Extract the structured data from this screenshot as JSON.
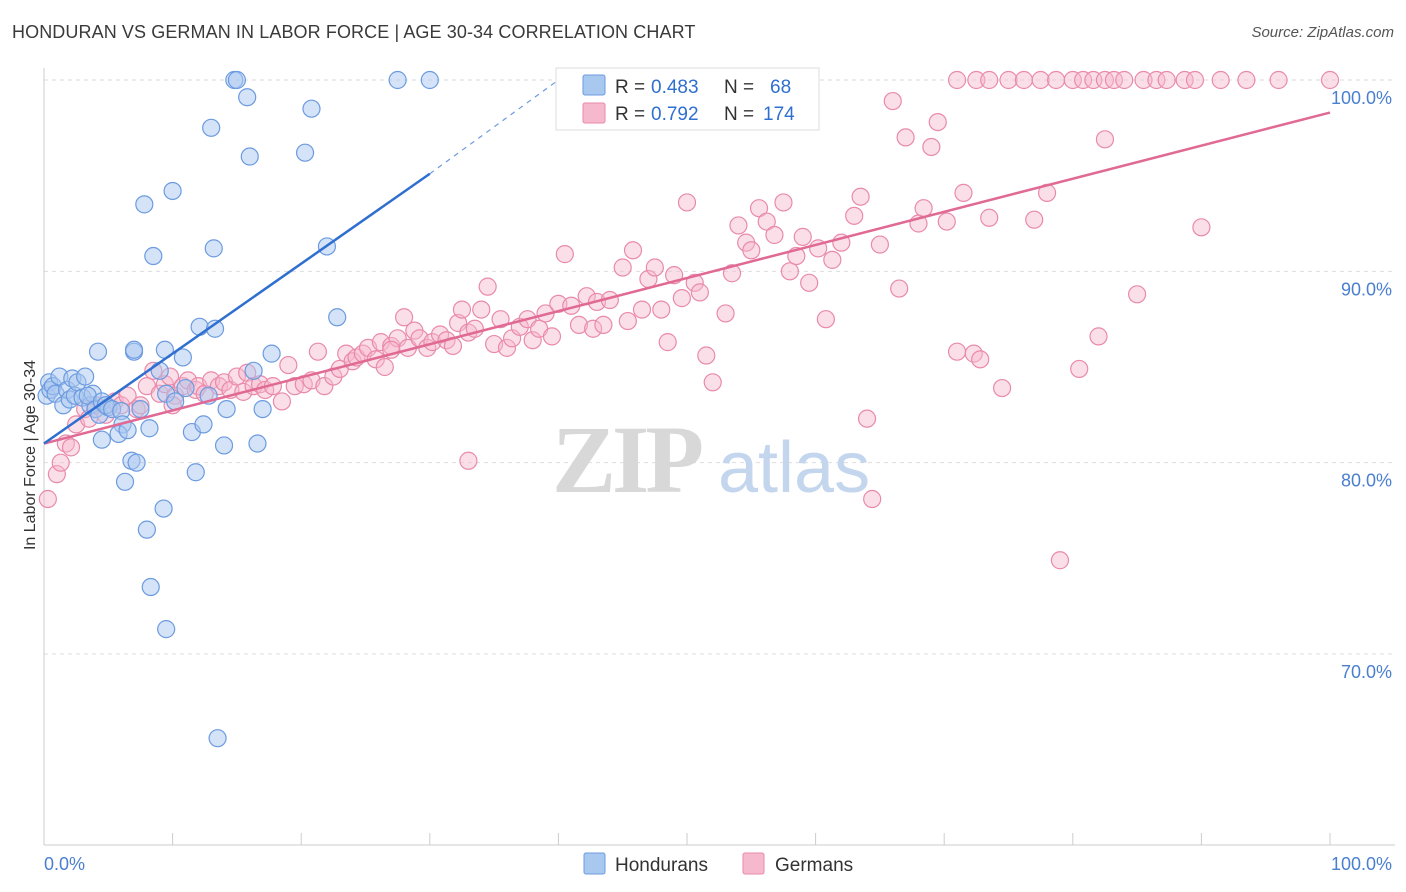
{
  "title": "HONDURAN VS GERMAN IN LABOR FORCE | AGE 30-34 CORRELATION CHART",
  "source": "Source: ZipAtlas.com",
  "watermark": {
    "zip": "ZIP",
    "atlas": "atlas"
  },
  "colors": {
    "hondurans_fill": "#a9c8ef",
    "hondurans_stroke": "#6c9be0",
    "hondurans_line": "#2f6fd0",
    "germans_fill": "#f6b8cc",
    "germans_stroke": "#e98aaa",
    "germans_line": "#e06a94",
    "accent_text": "#2f6fd0",
    "grid": "#dddddd"
  },
  "legend": {
    "r_label": "R =",
    "n_label": "N =",
    "hondurans": {
      "r": "0.483",
      "n": "68"
    },
    "germans": {
      "r": "0.792",
      "n": "174"
    }
  },
  "chart_data": {
    "type": "scatter",
    "title": "HONDURAN VS GERMAN IN LABOR FORCE | AGE 30-34 CORRELATION CHART",
    "xlabel": "",
    "ylabel": "In Labor Force | Age 30-34",
    "x_tick_labels": [
      "0.0%",
      "100.0%"
    ],
    "y_tick_labels": [
      "100.0%",
      "90.0%",
      "80.0%",
      "70.0%"
    ],
    "y_ticks": [
      100,
      90,
      80,
      70
    ],
    "xlim": [
      0,
      100
    ],
    "ylim": [
      60,
      101
    ],
    "grid": true,
    "legend_position": "top-center",
    "bottom_legend": [
      "Hondurans",
      "Germans"
    ],
    "series": [
      {
        "name": "Hondurans",
        "r": 0.483,
        "n": 68,
        "trend": {
          "x0": 0,
          "y0": 81.0,
          "x1": 30,
          "y1": 95.1,
          "dash_to_x": 40,
          "dash_to_y": 100
        },
        "points": [
          [
            0.2,
            83.5
          ],
          [
            0.4,
            84.2
          ],
          [
            0.5,
            83.8
          ],
          [
            0.7,
            84.0
          ],
          [
            0.9,
            83.6
          ],
          [
            1.2,
            84.5
          ],
          [
            1.5,
            83.0
          ],
          [
            1.8,
            83.8
          ],
          [
            2.0,
            83.3
          ],
          [
            2.2,
            84.4
          ],
          [
            2.4,
            83.5
          ],
          [
            2.6,
            84.2
          ],
          [
            3.0,
            83.4
          ],
          [
            3.2,
            84.5
          ],
          [
            3.6,
            83.0
          ],
          [
            3.8,
            83.6
          ],
          [
            3.4,
            83.5
          ],
          [
            4.0,
            82.8
          ],
          [
            4.2,
            85.8
          ],
          [
            4.3,
            82.5
          ],
          [
            4.5,
            83.2
          ],
          [
            4.5,
            81.2
          ],
          [
            5.0,
            82.9
          ],
          [
            4.8,
            83.0
          ],
          [
            5.3,
            82.8
          ],
          [
            6.0,
            82.7
          ],
          [
            6.1,
            82.0
          ],
          [
            5.8,
            81.5
          ],
          [
            6.3,
            79.0
          ],
          [
            6.5,
            81.7
          ],
          [
            6.8,
            80.1
          ],
          [
            7.0,
            85.8
          ],
          [
            7.2,
            80.0
          ],
          [
            7.0,
            85.9
          ],
          [
            7.5,
            82.8
          ],
          [
            8.2,
            81.8
          ],
          [
            8.0,
            76.5
          ],
          [
            7.8,
            93.5
          ],
          [
            8.3,
            73.5
          ],
          [
            8.5,
            90.8
          ],
          [
            9.0,
            84.8
          ],
          [
            9.3,
            77.6
          ],
          [
            9.5,
            83.6
          ],
          [
            9.4,
            85.9
          ],
          [
            9.5,
            71.3
          ],
          [
            10.0,
            94.2
          ],
          [
            10.2,
            83.2
          ],
          [
            10.8,
            85.5
          ],
          [
            11.0,
            83.9
          ],
          [
            11.5,
            81.6
          ],
          [
            11.8,
            79.5
          ],
          [
            12.1,
            87.1
          ],
          [
            12.4,
            82.0
          ],
          [
            12.8,
            83.5
          ],
          [
            13.0,
            97.5
          ],
          [
            13.2,
            91.2
          ],
          [
            13.3,
            87.0
          ],
          [
            13.5,
            65.6
          ],
          [
            14.0,
            80.9
          ],
          [
            14.2,
            82.8
          ],
          [
            14.8,
            100
          ],
          [
            15.0,
            100
          ],
          [
            15.8,
            99.1
          ],
          [
            16.0,
            96.0
          ],
          [
            16.3,
            84.8
          ],
          [
            16.6,
            81.0
          ],
          [
            17.0,
            82.8
          ],
          [
            17.7,
            85.7
          ],
          [
            20.3,
            96.2
          ],
          [
            20.8,
            98.5
          ],
          [
            22.0,
            91.3
          ],
          [
            22.8,
            87.6
          ],
          [
            27.5,
            100
          ],
          [
            30.0,
            100
          ]
        ]
      },
      {
        "name": "Germans",
        "r": 0.792,
        "n": 174,
        "trend": {
          "x0": 0,
          "y0": 81.0,
          "x1": 100,
          "y1": 98.3
        },
        "points": [
          [
            0.3,
            78.1
          ],
          [
            1.0,
            79.4
          ],
          [
            1.3,
            80.0
          ],
          [
            1.7,
            81.0
          ],
          [
            2.1,
            80.8
          ],
          [
            2.5,
            82.0
          ],
          [
            3.2,
            82.8
          ],
          [
            3.5,
            82.3
          ],
          [
            4.0,
            83.0
          ],
          [
            4.8,
            82.5
          ],
          [
            5.5,
            83.2
          ],
          [
            6.0,
            83.0
          ],
          [
            6.5,
            83.5
          ],
          [
            7.2,
            82.8
          ],
          [
            7.5,
            83.0
          ],
          [
            8.0,
            84.0
          ],
          [
            8.5,
            84.8
          ],
          [
            9.0,
            83.6
          ],
          [
            9.4,
            84.1
          ],
          [
            9.8,
            84.5
          ],
          [
            10.2,
            83.5
          ],
          [
            10.8,
            84.0
          ],
          [
            11.2,
            84.3
          ],
          [
            11.8,
            83.8
          ],
          [
            12.0,
            84.0
          ],
          [
            12.5,
            83.6
          ],
          [
            13.0,
            84.3
          ],
          [
            13.6,
            84.0
          ],
          [
            14.0,
            84.2
          ],
          [
            14.5,
            83.8
          ],
          [
            15.0,
            84.5
          ],
          [
            15.5,
            83.7
          ],
          [
            15.8,
            84.7
          ],
          [
            16.3,
            84.0
          ],
          [
            16.8,
            84.1
          ],
          [
            17.2,
            83.8
          ],
          [
            17.8,
            84.0
          ],
          [
            18.5,
            83.2
          ],
          [
            19.0,
            85.1
          ],
          [
            19.5,
            84.0
          ],
          [
            20.2,
            84.1
          ],
          [
            20.8,
            84.3
          ],
          [
            21.3,
            85.8
          ],
          [
            21.8,
            84.0
          ],
          [
            22.5,
            84.5
          ],
          [
            23.0,
            84.9
          ],
          [
            23.5,
            85.7
          ],
          [
            24.0,
            85.3
          ],
          [
            24.3,
            85.5
          ],
          [
            24.8,
            85.7
          ],
          [
            25.2,
            86.0
          ],
          [
            25.8,
            85.4
          ],
          [
            26.2,
            86.3
          ],
          [
            26.5,
            85.0
          ],
          [
            27.0,
            86.1
          ],
          [
            27.5,
            86.5
          ],
          [
            28.0,
            87.6
          ],
          [
            28.3,
            86.0
          ],
          [
            28.8,
            86.9
          ],
          [
            29.2,
            86.5
          ],
          [
            29.8,
            86.0
          ],
          [
            30.2,
            86.3
          ],
          [
            30.8,
            86.7
          ],
          [
            31.3,
            86.4
          ],
          [
            31.8,
            86.1
          ],
          [
            32.2,
            87.3
          ],
          [
            32.5,
            88.0
          ],
          [
            33.0,
            86.8
          ],
          [
            33.5,
            87.0
          ],
          [
            34.0,
            88.0
          ],
          [
            34.5,
            89.2
          ],
          [
            35.0,
            86.2
          ],
          [
            35.5,
            87.5
          ],
          [
            36.0,
            86.0
          ],
          [
            36.4,
            86.5
          ],
          [
            37.0,
            87.1
          ],
          [
            37.6,
            87.5
          ],
          [
            38.0,
            86.4
          ],
          [
            38.5,
            87.0
          ],
          [
            39.0,
            87.8
          ],
          [
            39.5,
            86.6
          ],
          [
            40.0,
            88.3
          ],
          [
            40.5,
            90.9
          ],
          [
            41.0,
            88.2
          ],
          [
            41.6,
            87.2
          ],
          [
            42.2,
            88.7
          ],
          [
            42.7,
            87.0
          ],
          [
            43.0,
            88.4
          ],
          [
            43.5,
            87.2
          ],
          [
            44.0,
            88.5
          ],
          [
            45.0,
            90.2
          ],
          [
            45.4,
            87.4
          ],
          [
            45.8,
            91.1
          ],
          [
            46.5,
            88.0
          ],
          [
            47.0,
            89.6
          ],
          [
            47.5,
            90.2
          ],
          [
            48.0,
            88.0
          ],
          [
            48.5,
            86.3
          ],
          [
            49.0,
            89.8
          ],
          [
            49.6,
            88.6
          ],
          [
            50.0,
            93.6
          ],
          [
            50.6,
            89.4
          ],
          [
            51.0,
            88.9
          ],
          [
            51.5,
            85.6
          ],
          [
            52.0,
            84.2
          ],
          [
            53.0,
            87.8
          ],
          [
            53.5,
            89.9
          ],
          [
            54.0,
            92.4
          ],
          [
            54.6,
            91.5
          ],
          [
            55.0,
            91.1
          ],
          [
            55.6,
            93.3
          ],
          [
            56.2,
            92.6
          ],
          [
            56.8,
            91.9
          ],
          [
            57.5,
            93.6
          ],
          [
            58.0,
            90.0
          ],
          [
            58.5,
            90.8
          ],
          [
            59.0,
            91.8
          ],
          [
            59.5,
            89.4
          ],
          [
            60.2,
            91.2
          ],
          [
            60.8,
            87.5
          ],
          [
            61.3,
            90.6
          ],
          [
            62.0,
            91.5
          ],
          [
            63.0,
            92.9
          ],
          [
            63.5,
            93.9
          ],
          [
            64.0,
            82.3
          ],
          [
            64.4,
            78.1
          ],
          [
            65.0,
            91.4
          ],
          [
            66.0,
            98.9
          ],
          [
            66.5,
            89.1
          ],
          [
            67.0,
            97.0
          ],
          [
            68.0,
            92.5
          ],
          [
            68.4,
            93.3
          ],
          [
            69.0,
            96.5
          ],
          [
            69.5,
            97.8
          ],
          [
            70.2,
            92.6
          ],
          [
            71.0,
            85.8
          ],
          [
            71.5,
            94.1
          ],
          [
            72.3,
            85.7
          ],
          [
            72.8,
            85.4
          ],
          [
            73.5,
            92.8
          ],
          [
            74.5,
            83.9
          ],
          [
            77.0,
            92.7
          ],
          [
            78.0,
            94.1
          ],
          [
            79.0,
            74.9
          ],
          [
            80.5,
            84.9
          ],
          [
            82.0,
            86.6
          ],
          [
            82.5,
            96.9
          ],
          [
            85.0,
            88.8
          ],
          [
            90.0,
            92.3
          ],
          [
            71.0,
            100
          ],
          [
            72.5,
            100
          ],
          [
            73.5,
            100
          ],
          [
            75.0,
            100
          ],
          [
            76.2,
            100
          ],
          [
            77.5,
            100
          ],
          [
            78.7,
            100
          ],
          [
            80.0,
            100
          ],
          [
            80.8,
            100
          ],
          [
            81.6,
            100
          ],
          [
            82.5,
            100
          ],
          [
            83.2,
            100
          ],
          [
            84.0,
            100
          ],
          [
            85.5,
            100
          ],
          [
            86.5,
            100
          ],
          [
            87.3,
            100
          ],
          [
            88.7,
            100
          ],
          [
            89.5,
            100
          ],
          [
            91.5,
            100
          ],
          [
            93.5,
            100
          ],
          [
            96.0,
            100
          ],
          [
            100.0,
            100
          ],
          [
            33.0,
            80.1
          ],
          [
            10.0,
            83.0
          ],
          [
            27.0,
            85.9
          ]
        ]
      }
    ]
  }
}
